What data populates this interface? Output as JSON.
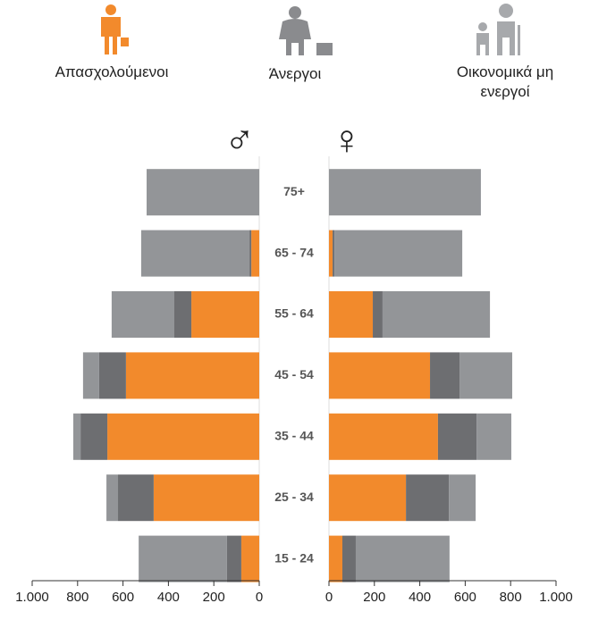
{
  "chart_data": {
    "type": "pyramid",
    "sexes": [
      "♂",
      "♀"
    ],
    "categories": [
      "75+",
      "65 - 74",
      "55 - 64",
      "45 - 54",
      "35 - 44",
      "25 - 34",
      "15 - 24"
    ],
    "series": [
      {
        "name": "Απασχολούμενοι",
        "color": "#f28a2c",
        "male": [
          0,
          35,
          299,
          587,
          669,
          465,
          79
        ],
        "female": [
          0,
          16,
          193,
          445,
          480,
          339,
          59
        ]
      },
      {
        "name": "Άνεργοι",
        "color": "#6d6e71",
        "male": [
          0,
          8,
          75,
          118,
          118,
          157,
          63
        ],
        "female": [
          0,
          8,
          43,
          130,
          170,
          189,
          59
        ]
      },
      {
        "name": "Οικονομικά μη ενεργοί",
        "color": "#939598",
        "male": [
          496,
          477,
          276,
          71,
          32,
          51,
          389
        ],
        "female": [
          669,
          563,
          473,
          232,
          153,
          118,
          413
        ]
      }
    ],
    "xlim": [
      0,
      1000
    ],
    "xticks": [
      0,
      200,
      400,
      600,
      800,
      {
        "value": 1000,
        "label": "1.000"
      }
    ]
  }
}
